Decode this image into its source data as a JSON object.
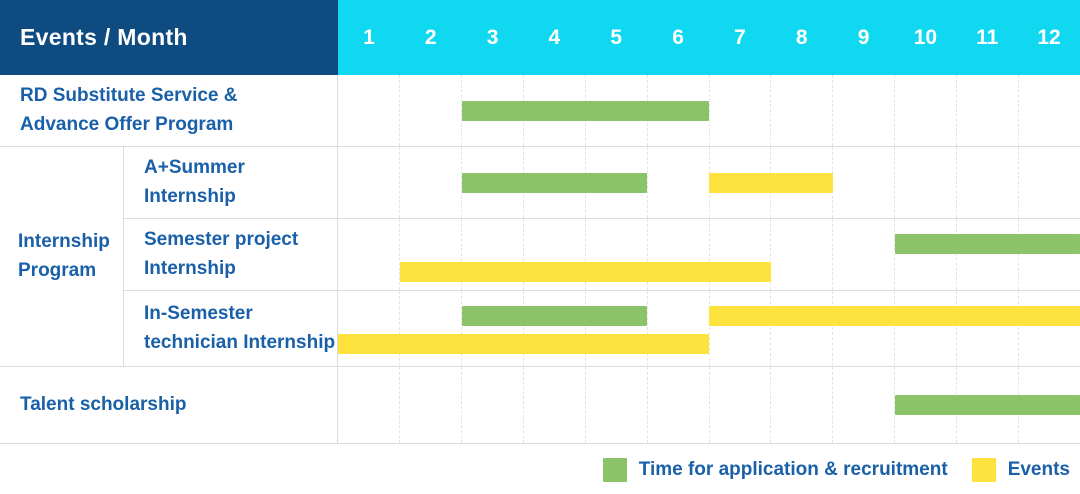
{
  "title": "Events / Month",
  "group": {
    "label": "Internship\nProgram"
  },
  "colors": {
    "header_bg": "#0E4B80",
    "month_header_bg": "#10D8F0",
    "header_text": "#FFFFFF",
    "label_text": "#1A60A8",
    "bar_green": "#8BC368",
    "bar_yellow": "#FEE23E",
    "row_border": "#DCDCDC",
    "grid_line": "#E3E3E3"
  },
  "chart_data": {
    "type": "bar",
    "subtype": "gantt",
    "title": "Events / Month",
    "x": {
      "label": "Month",
      "ticks": [
        "1",
        "2",
        "3",
        "4",
        "5",
        "6",
        "7",
        "8",
        "9",
        "10",
        "11",
        "12"
      ],
      "range": [
        1,
        13
      ],
      "grid": true
    },
    "legend_position": "bottom-right",
    "legend": [
      {
        "name": "Time for application & recruitment",
        "color": "#8BC368"
      },
      {
        "name": "Events",
        "color": "#FEE23E"
      }
    ],
    "rows": [
      {
        "group": "",
        "label": "RD Substitute Service &\nAdvance Offer Program",
        "lines": 1,
        "bars": [
          {
            "series": "Time for application & recruitment",
            "start_month": 3,
            "end_month": 6,
            "line": 1
          }
        ]
      },
      {
        "group": "Internship Program",
        "label": "A+Summer\nInternship",
        "lines": 1,
        "bars": [
          {
            "series": "Time for application & recruitment",
            "start_month": 3,
            "end_month": 5,
            "line": 1
          },
          {
            "series": "Events",
            "start_month": 7,
            "end_month": 8,
            "line": 1
          }
        ]
      },
      {
        "group": "Internship Program",
        "label": "Semester project\nInternship",
        "lines": 2,
        "bars": [
          {
            "series": "Time for application & recruitment",
            "start_month": 10,
            "end_month": 12,
            "line": 1
          },
          {
            "series": "Events",
            "start_month": 2,
            "end_month": 7,
            "line": 2
          }
        ]
      },
      {
        "group": "Internship Program",
        "label": "In-Semester\ntechnician Internship",
        "lines": 2,
        "bars": [
          {
            "series": "Time for application & recruitment",
            "start_month": 3,
            "end_month": 5,
            "line": 1
          },
          {
            "series": "Events",
            "start_month": 7,
            "end_month": 12,
            "line": 1
          },
          {
            "series": "Events",
            "start_month": 1,
            "end_month": 6,
            "line": 2
          }
        ]
      },
      {
        "group": "",
        "label": "Talent scholarship",
        "lines": 1,
        "bars": [
          {
            "series": "Time for application & recruitment",
            "start_month": 10,
            "end_month": 12,
            "line": 1
          }
        ]
      }
    ]
  }
}
